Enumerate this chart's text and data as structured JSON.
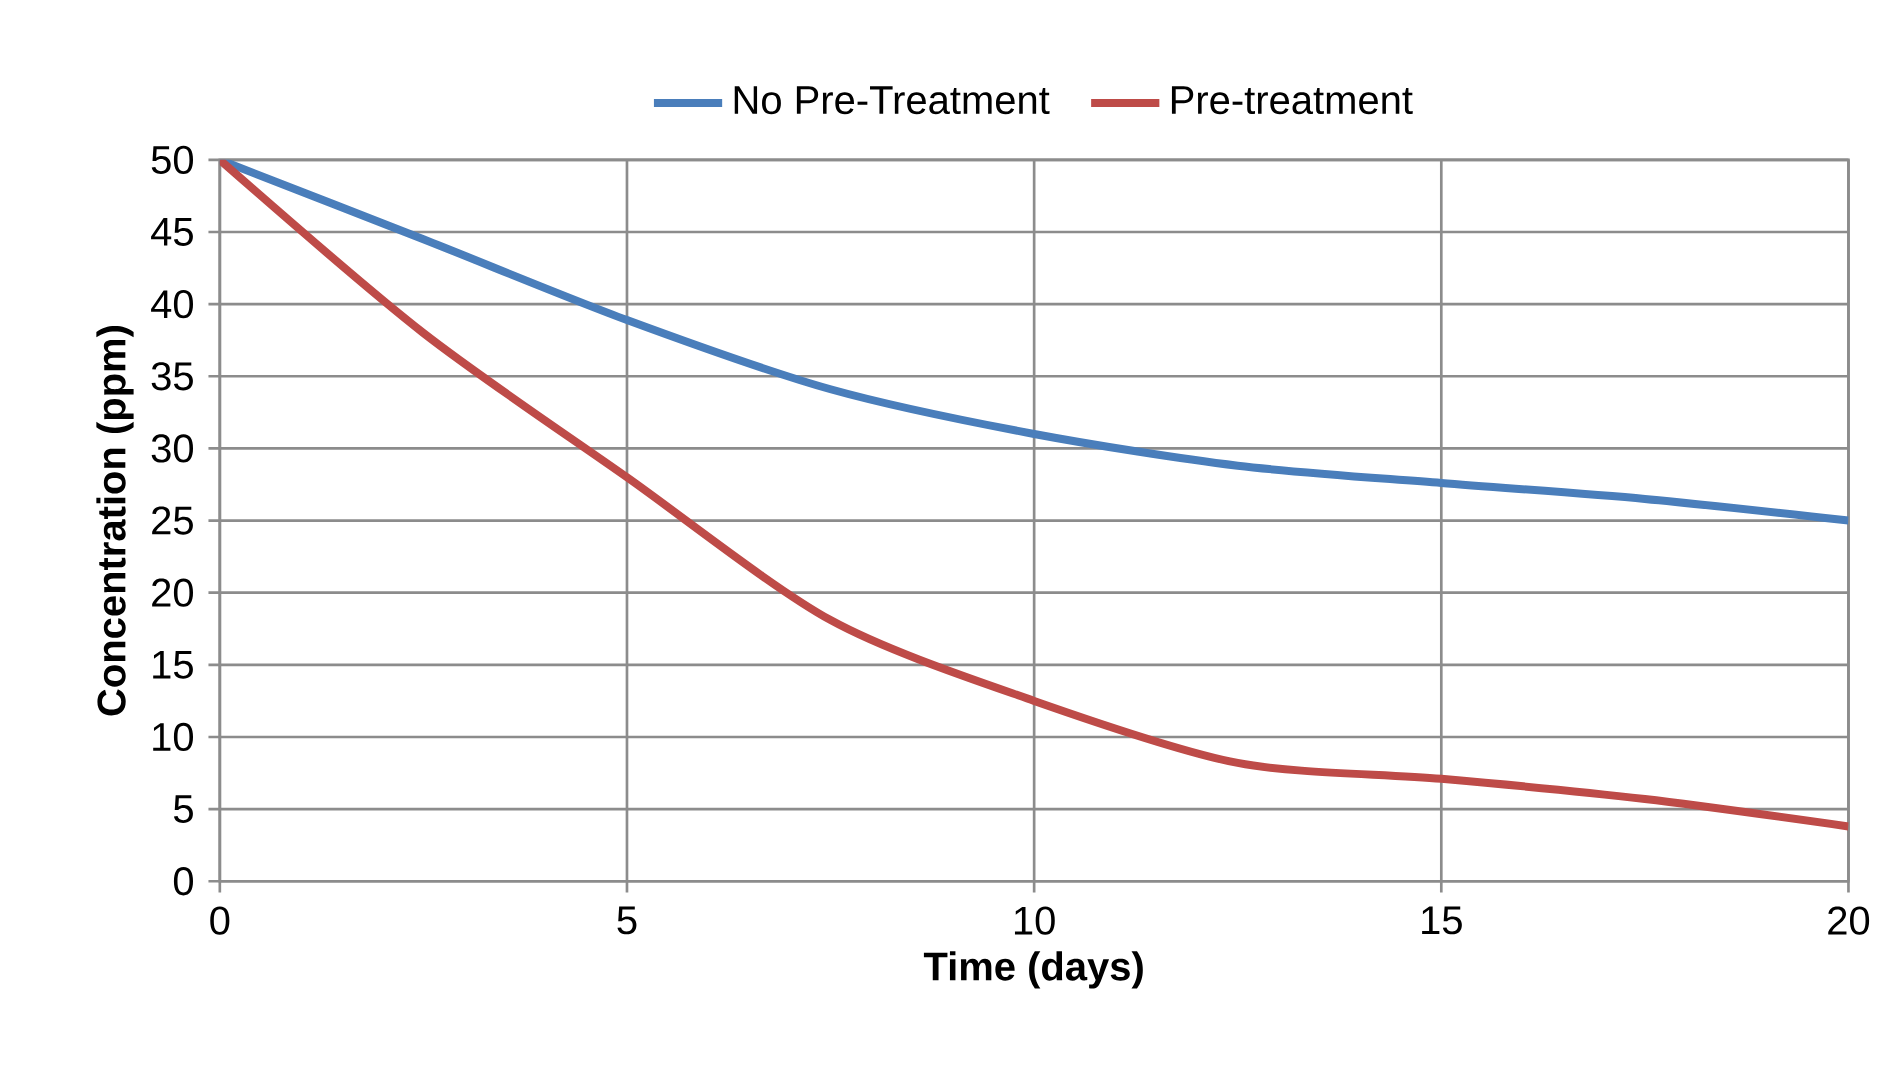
{
  "chart_data": {
    "type": "line",
    "xlabel": "Time (days)",
    "ylabel": "Concentration (ppm)",
    "x": [
      0,
      2.5,
      5,
      7.5,
      10,
      12.5,
      15,
      17.5,
      20
    ],
    "series": [
      {
        "name": "No Pre-Treatment",
        "color": "#4a7ebb",
        "values": [
          50,
          44.5,
          38.9,
          34.1,
          31,
          28.8,
          27.6,
          26.5,
          25
        ]
      },
      {
        "name": "Pre-treatment",
        "color": "#be4b48",
        "values": [
          50,
          38,
          28,
          18.1,
          12.5,
          8.2,
          7.1,
          5.7,
          3.8
        ]
      }
    ],
    "xlim": [
      0,
      20
    ],
    "xticks": [
      0,
      5,
      10,
      15,
      20
    ],
    "ylim": [
      0,
      50
    ],
    "yticks": [
      0,
      5,
      10,
      15,
      20,
      25,
      30,
      35,
      40,
      45,
      50
    ],
    "grid": true,
    "legend": "top",
    "marker": "none",
    "line_style": "solid"
  }
}
